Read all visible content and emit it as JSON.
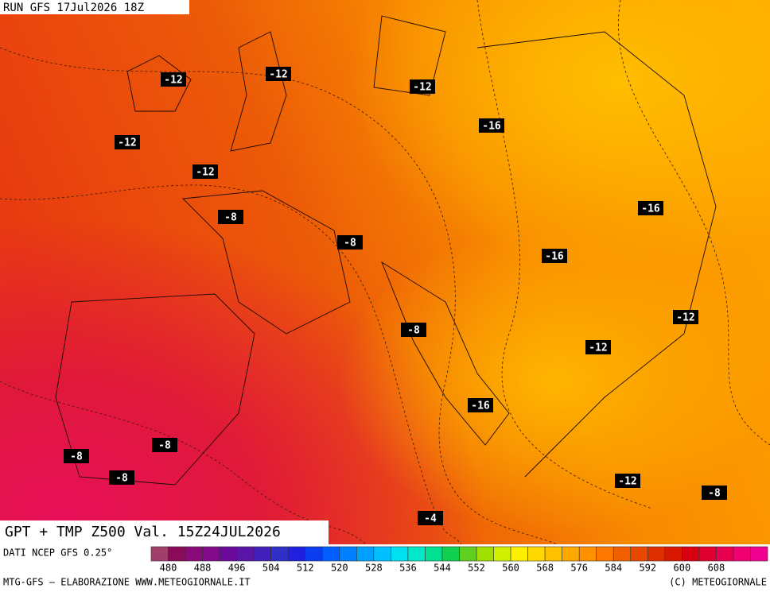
{
  "header": {
    "run": "RUN GFS 17Jul2026 18Z"
  },
  "title": "GPT + TMP Z500 Val. 15Z24JUL2026",
  "contour_labels": [
    -12,
    -12,
    -12,
    -16,
    -12,
    -12,
    -8,
    -16,
    -8,
    -16,
    -12,
    -8,
    -12,
    -16,
    -8,
    -8,
    -8,
    -12,
    -8,
    -4
  ],
  "legend": {
    "source": "DATI NCEP GFS 0.25°",
    "ticks": [
      480,
      488,
      496,
      504,
      512,
      520,
      528,
      536,
      544,
      552,
      560,
      568,
      576,
      584,
      592,
      600,
      608
    ],
    "colors": [
      "#a0406a",
      "#8b0a5a",
      "#8a0a7a",
      "#820a8a",
      "#6a0a9a",
      "#5a14a8",
      "#4020b8",
      "#3030c8",
      "#2020e0",
      "#0a3cf0",
      "#0060ff",
      "#0080ff",
      "#00a0ff",
      "#00c0ff",
      "#00e0f0",
      "#00e8c8",
      "#00e090",
      "#10d050",
      "#60d020",
      "#a0e000",
      "#d0f000",
      "#fff000",
      "#ffd800",
      "#ffc000",
      "#ffa800",
      "#ff9000",
      "#ff7800",
      "#f06000",
      "#e84800",
      "#e03000",
      "#d81800",
      "#d80010",
      "#e00030",
      "#e80050",
      "#f00070",
      "#f00090"
    ]
  },
  "footer": {
    "left": "MTG-GFS — ELABORAZIONE WWW.METEOGIORNALE.IT",
    "right": "(C) METEOGIORNALE"
  }
}
